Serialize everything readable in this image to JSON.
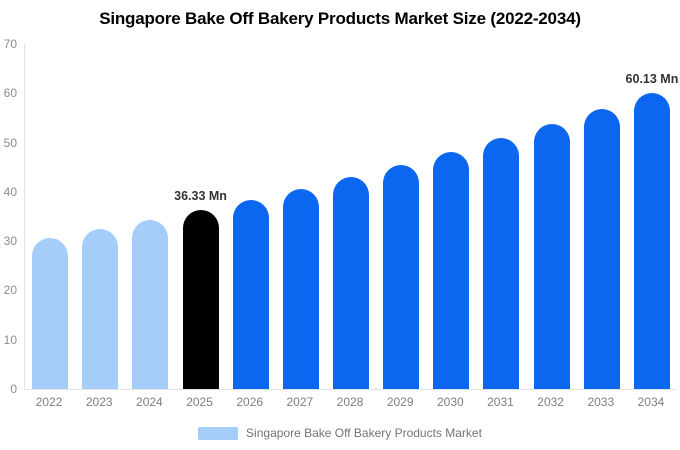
{
  "chart_data": {
    "type": "bar",
    "title": "Singapore Bake Off Bakery Products Market Size (2022-2034)",
    "categories": [
      "2022",
      "2023",
      "2024",
      "2025",
      "2026",
      "2027",
      "2028",
      "2029",
      "2030",
      "2031",
      "2032",
      "2033",
      "2034"
    ],
    "values": [
      30.71,
      32.48,
      34.35,
      36.33,
      38.42,
      40.63,
      42.97,
      45.45,
      48.06,
      50.83,
      53.76,
      56.85,
      60.13
    ],
    "unit": "Mn",
    "ylim": [
      0,
      70
    ],
    "yticks": [
      0,
      10,
      20,
      30,
      40,
      50,
      60,
      70
    ],
    "grid": false,
    "legend_position": "bottom",
    "bar_colors": [
      "#a4cdf9",
      "#a4cdf9",
      "#a4cdf9",
      "#000000",
      "#0b66f0",
      "#0b66f0",
      "#0b66f0",
      "#0b66f0",
      "#0b66f0",
      "#0b66f0",
      "#0b66f0",
      "#0b66f0",
      "#0b66f0"
    ],
    "annotations": [
      {
        "category": "2025",
        "index": 3,
        "text": "36.33 Mn"
      },
      {
        "category": "2034",
        "index": 12,
        "text": "60.13 Mn"
      }
    ]
  },
  "legend": {
    "label": "Singapore Bake Off Bakery Products Market",
    "swatch_color": "#a4cdf9"
  },
  "colors": {
    "historical_bar": "#a4cdf9",
    "highlight_bar": "#000000",
    "forecast_bar": "#0b66f0",
    "axis_line": "#e2e2e2",
    "y_tick_label": "#8c8c8c",
    "x_tick_label": "#7f7f7f",
    "annotation_text": "#333333",
    "title_text": "#000000",
    "legend_text": "#737373"
  }
}
